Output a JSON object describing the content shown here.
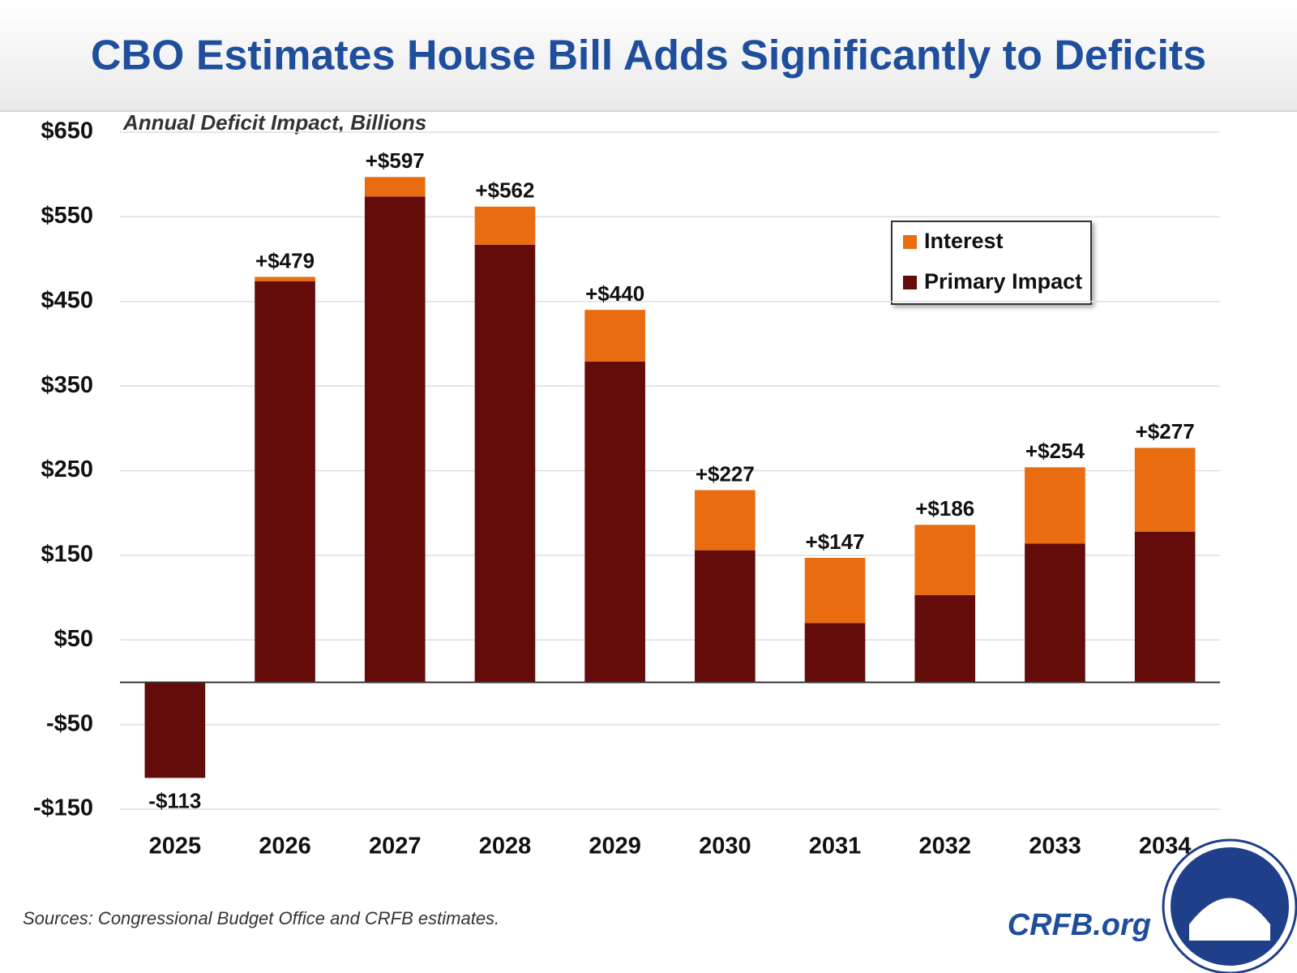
{
  "chart_data": {
    "type": "stacked_bar",
    "title": "CBO Estimates House Bill Adds Significantly to Deficits",
    "subtitle": "Annual Deficit Impact, Billions",
    "source": "Sources: Congressional Budget Office and CRFB estimates.",
    "brand": "CRFB.org",
    "categories": [
      "2025",
      "2026",
      "2027",
      "2028",
      "2029",
      "2030",
      "2031",
      "2032",
      "2033",
      "2034"
    ],
    "series": [
      {
        "name": "Primary Impact",
        "color": "#640c0a",
        "values": [
          -113,
          474,
          574,
          517,
          379,
          156,
          70,
          103,
          164,
          178
        ]
      },
      {
        "name": "Interest",
        "color": "#ea6c10",
        "values": [
          0,
          5,
          23,
          45,
          61,
          71,
          77,
          83,
          90,
          99
        ]
      }
    ],
    "totals": {
      "values": [
        -113,
        479,
        597,
        562,
        440,
        227,
        147,
        186,
        254,
        277
      ],
      "value_labels": [
        "-$113",
        "+$479",
        "+$597",
        "+$562",
        "+$440",
        "+$227",
        "+$147",
        "+$186",
        "+$254",
        "+$277"
      ]
    },
    "ylim": [
      -150,
      650
    ],
    "yticks": [
      {
        "value": 650,
        "label": "$650"
      },
      {
        "value": 550,
        "label": "$550"
      },
      {
        "value": 450,
        "label": "$450"
      },
      {
        "value": 350,
        "label": "$350"
      },
      {
        "value": 250,
        "label": "$250"
      },
      {
        "value": 150,
        "label": "$150"
      },
      {
        "value": 50,
        "label": "$50"
      },
      {
        "value": -50,
        "label": "-$50"
      },
      {
        "value": -150,
        "label": "-$150"
      }
    ],
    "grid": true,
    "legend": "upper-right"
  }
}
